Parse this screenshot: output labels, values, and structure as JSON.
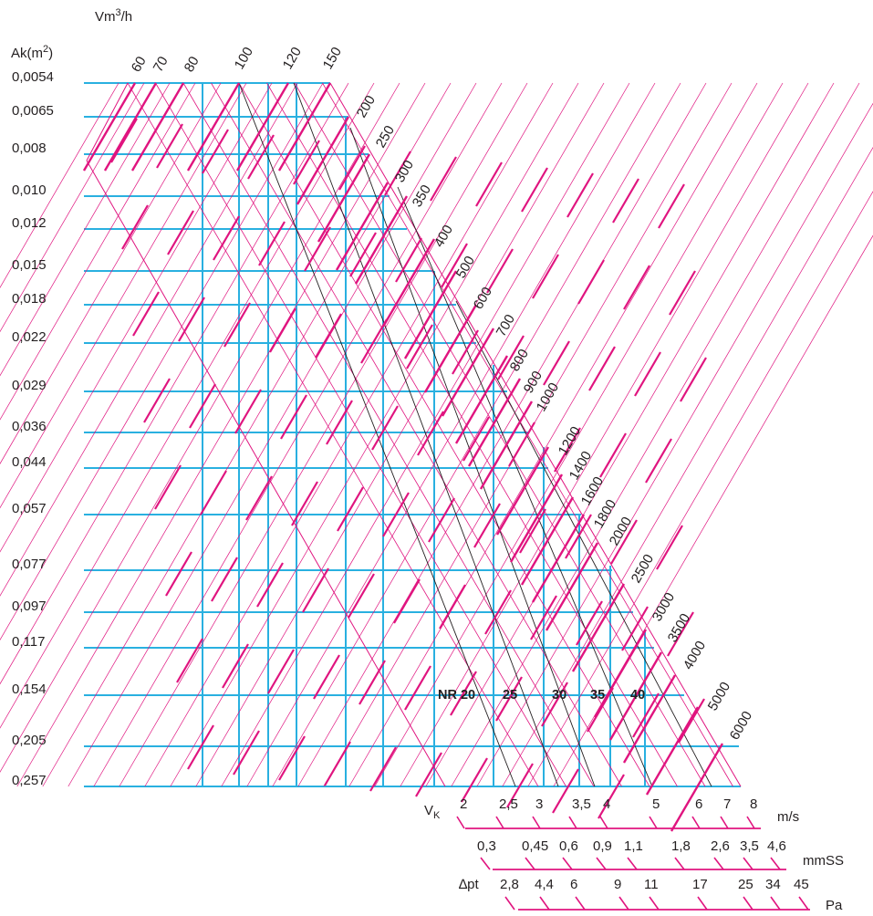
{
  "chart_data": {
    "type": "nomogram",
    "title": "",
    "y_axis": {
      "label": "Ak(m²)",
      "label_base": "Ak(m",
      "label_sup": "2",
      "label_close": ")",
      "ticks": [
        "0,0054",
        "0,0065",
        "0,008",
        "0,010",
        "0,012",
        "0,015",
        "0,018",
        "0,022",
        "0,029",
        "0,036",
        "0,044",
        "0,057",
        "0,077",
        "0,097",
        "0,117",
        "0,154",
        "0,205",
        "0,257"
      ]
    },
    "flow_axis": {
      "label": "Vm³/h",
      "label_base": "Vm",
      "label_sup": "3",
      "label_close": "/h",
      "values": [
        "60",
        "70",
        "80",
        "100",
        "120",
        "150",
        "200",
        "250",
        "300",
        "350",
        "400",
        "500",
        "600",
        "700",
        "800",
        "900",
        "1000",
        "1200",
        "1400",
        "1600",
        "1800",
        "2000",
        "2500",
        "3000",
        "3500",
        "4000",
        "5000",
        "6000"
      ]
    },
    "velocity_axis": {
      "label": "VK",
      "label_base": "V",
      "label_sub": "K",
      "unit": "m/s",
      "ticks": [
        "2",
        "2,5",
        "3",
        "3,5",
        "4",
        "5",
        "6",
        "7",
        "8"
      ]
    },
    "pressure_mmss_axis": {
      "unit": "mmSS",
      "ticks": [
        "0,3",
        "0,45",
        "0,6",
        "0,9",
        "1,1",
        "1,8",
        "2,6",
        "3,5",
        "4,6"
      ]
    },
    "pressure_pa_axis": {
      "label": "∆pt",
      "unit": "Pa",
      "ticks": [
        "2,8",
        "4,4",
        "6",
        "9",
        "11",
        "17",
        "25",
        "34",
        "45"
      ]
    },
    "noise_curves": {
      "labels": [
        "NR 20",
        "25",
        "30",
        "35",
        "40"
      ]
    },
    "colors": {
      "grid_blue": "#29b0e0",
      "magenta": "#e0147f",
      "nr_line": "#231f20",
      "text": "#231f20"
    }
  }
}
